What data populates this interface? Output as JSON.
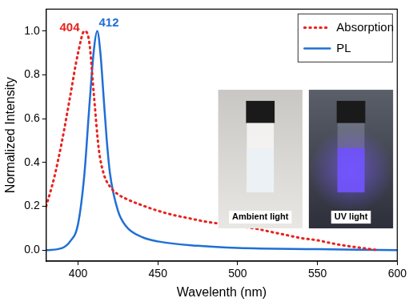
{
  "chart_data": {
    "type": "line",
    "x_label": "Wavelenth (nm)",
    "y_label": "Normalized Intensity",
    "xlim": [
      380,
      600
    ],
    "xticks": [
      400,
      450,
      500,
      550,
      600
    ],
    "ylim": [
      -0.05,
      1.1
    ],
    "yticks": [
      {
        "value": 0,
        "label": "0.0"
      },
      {
        "value": 0.2,
        "label": "0.2"
      },
      {
        "value": 0.4,
        "label": "0.4"
      },
      {
        "value": 0.6,
        "label": "0.6"
      },
      {
        "value": 0.8,
        "label": "0.8"
      },
      {
        "value": 1.0,
        "label": "1.0"
      }
    ],
    "grid": false,
    "legend": "upper right",
    "series": [
      {
        "name": "Absorption",
        "color": "#e8231f",
        "line_style": "dotted",
        "x": [
          380,
          385,
          390,
          395,
          400,
          404,
          407,
          410,
          413,
          416,
          420,
          425,
          430,
          440,
          450,
          460,
          470,
          480,
          490,
          500,
          510,
          520,
          530,
          540,
          550,
          560,
          570,
          580,
          588
        ],
        "values": [
          0.2,
          0.33,
          0.5,
          0.7,
          0.9,
          1.0,
          0.95,
          0.7,
          0.46,
          0.35,
          0.29,
          0.255,
          0.235,
          0.205,
          0.18,
          0.16,
          0.145,
          0.13,
          0.12,
          0.11,
          0.1,
          0.085,
          0.07,
          0.055,
          0.045,
          0.03,
          0.018,
          0.008,
          0.0
        ]
      },
      {
        "name": "PL",
        "color": "#1f6fd6",
        "line_style": "solid",
        "x": [
          380,
          390,
          395,
          400,
          404,
          407,
          410,
          412,
          414,
          416,
          418,
          420,
          425,
          430,
          440,
          450,
          475,
          500,
          550,
          600
        ],
        "values": [
          0.0,
          0.01,
          0.04,
          0.12,
          0.35,
          0.65,
          0.92,
          1.0,
          0.9,
          0.7,
          0.5,
          0.35,
          0.18,
          0.11,
          0.06,
          0.04,
          0.02,
          0.01,
          0.005,
          0.0
        ]
      }
    ],
    "annotations": [
      {
        "text": "404",
        "color": "#e8231f"
      },
      {
        "text": "412",
        "color": "#1f6fd6"
      }
    ],
    "insets": [
      {
        "label": "Ambient light"
      },
      {
        "label": "UV light"
      }
    ]
  }
}
